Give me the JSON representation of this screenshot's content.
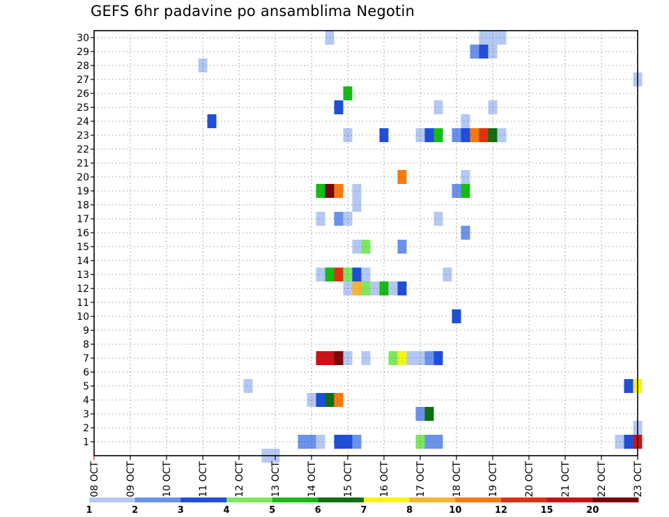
{
  "title": "GEFS 6hr padavine po ansamblima Negotin",
  "chart_data": {
    "type": "heatmap",
    "title": "GEFS 6hr padavine po ansamblima Negotin",
    "xlabel": "",
    "ylabel": "",
    "x_start": "08 OCT",
    "x_steps_per_day": 4,
    "x_tick_labels": [
      "08 OCT",
      "09 OCT",
      "10 OCT",
      "11 OCT",
      "12 OCT",
      "13 OCT",
      "14 OCT",
      "15 OCT",
      "16 OCT",
      "17 OCT",
      "18 OCT",
      "19 OCT",
      "20 OCT",
      "21 OCT",
      "22 OCT",
      "23 OCT"
    ],
    "y_tick_labels": [
      "1",
      "2",
      "3",
      "4",
      "5",
      "6",
      "7",
      "8",
      "9",
      "10",
      "11",
      "12",
      "13",
      "14",
      "15",
      "16",
      "17",
      "18",
      "19",
      "20",
      "21",
      "22",
      "23",
      "24",
      "25",
      "26",
      "27",
      "28",
      "29",
      "30"
    ],
    "xlim": [
      "08 OCT",
      "23 OCT"
    ],
    "ylim": [
      0,
      30
    ],
    "grid": true,
    "legend": {
      "placement": "bottom",
      "boundaries": [
        "1",
        "2",
        "3",
        "4",
        "5",
        "6",
        "7",
        "8",
        "10",
        "12",
        "15",
        "20"
      ],
      "colors": [
        "#b4c8f4",
        "#6a92ec",
        "#1f4fd8",
        "#7ce85e",
        "#14bc14",
        "#0f6e0f",
        "#f6f414",
        "#f8b432",
        "#f47a10",
        "#dc3214",
        "#c81414",
        "#780808"
      ]
    },
    "cell_columns": [
      "member",
      "time_step",
      "value"
    ],
    "cells": [
      [
        30,
        26,
        1.5
      ],
      [
        30,
        43,
        1.5
      ],
      [
        30,
        44,
        1.5
      ],
      [
        30,
        45,
        1.5
      ],
      [
        29,
        42,
        2.5
      ],
      [
        29,
        43,
        3.5
      ],
      [
        29,
        44,
        1.5
      ],
      [
        28,
        12,
        1.5
      ],
      [
        27,
        60,
        1.5
      ],
      [
        26,
        28,
        5.5
      ],
      [
        25,
        27,
        3.5
      ],
      [
        25,
        38,
        1.5
      ],
      [
        25,
        44,
        1.5
      ],
      [
        24,
        13,
        3.5
      ],
      [
        24,
        41,
        1.5
      ],
      [
        23,
        28,
        1.5
      ],
      [
        23,
        32,
        3.5
      ],
      [
        23,
        36,
        1.5
      ],
      [
        23,
        37,
        3.5
      ],
      [
        23,
        38,
        5.5
      ],
      [
        23,
        40,
        2.5
      ],
      [
        23,
        41,
        3.5
      ],
      [
        23,
        42,
        11
      ],
      [
        23,
        43,
        14
      ],
      [
        23,
        44,
        6.5
      ],
      [
        23,
        45,
        1.5
      ],
      [
        20,
        41,
        1.5
      ],
      [
        20,
        34,
        11
      ],
      [
        19,
        25,
        5.5
      ],
      [
        19,
        26,
        21
      ],
      [
        19,
        27,
        11
      ],
      [
        19,
        29,
        1.5
      ],
      [
        19,
        40,
        2.5
      ],
      [
        19,
        41,
        5.5
      ],
      [
        18,
        29,
        1.5
      ],
      [
        17,
        25,
        1.5
      ],
      [
        17,
        27,
        2.5
      ],
      [
        17,
        28,
        1.5
      ],
      [
        17,
        38,
        1.5
      ],
      [
        16,
        41,
        2.5
      ],
      [
        15,
        29,
        1.5
      ],
      [
        15,
        30,
        4.5
      ],
      [
        15,
        34,
        2.5
      ],
      [
        13,
        25,
        1.5
      ],
      [
        13,
        26,
        5.5
      ],
      [
        13,
        27,
        14
      ],
      [
        13,
        28,
        4.5
      ],
      [
        13,
        29,
        3.5
      ],
      [
        13,
        30,
        1.5
      ],
      [
        13,
        39,
        1.5
      ],
      [
        12,
        28,
        1.5
      ],
      [
        12,
        29,
        9
      ],
      [
        12,
        30,
        4.5
      ],
      [
        12,
        31,
        1.5
      ],
      [
        12,
        32,
        5.5
      ],
      [
        12,
        33,
        1.5
      ],
      [
        12,
        34,
        3.5
      ],
      [
        10,
        40,
        3.5
      ],
      [
        7,
        25,
        16
      ],
      [
        7,
        26,
        16
      ],
      [
        7,
        27,
        21
      ],
      [
        7,
        28,
        1.5
      ],
      [
        7,
        30,
        1.5
      ],
      [
        7,
        33,
        4.5
      ],
      [
        7,
        34,
        7.5
      ],
      [
        7,
        35,
        1.5
      ],
      [
        7,
        36,
        1.5
      ],
      [
        7,
        37,
        2.5
      ],
      [
        7,
        38,
        3.5
      ],
      [
        5,
        17,
        1.5
      ],
      [
        5,
        59,
        3.5
      ],
      [
        5,
        60,
        7.5
      ],
      [
        4,
        24,
        1.5
      ],
      [
        4,
        25,
        3.5
      ],
      [
        4,
        26,
        6.5
      ],
      [
        4,
        27,
        11
      ],
      [
        3,
        36,
        2.5
      ],
      [
        3,
        37,
        6.5
      ],
      [
        2,
        60,
        1.5
      ],
      [
        1,
        23,
        2.5
      ],
      [
        1,
        24,
        2.5
      ],
      [
        1,
        25,
        1.5
      ],
      [
        1,
        27,
        3.5
      ],
      [
        1,
        28,
        3.5
      ],
      [
        1,
        29,
        2.5
      ],
      [
        1,
        36,
        4.5
      ],
      [
        1,
        37,
        2.5
      ],
      [
        1,
        38,
        2.5
      ],
      [
        1,
        58,
        1.5
      ],
      [
        1,
        59,
        3.5
      ],
      [
        1,
        60,
        16
      ],
      [
        0,
        19,
        1.5
      ],
      [
        0,
        20,
        1.5
      ]
    ]
  }
}
